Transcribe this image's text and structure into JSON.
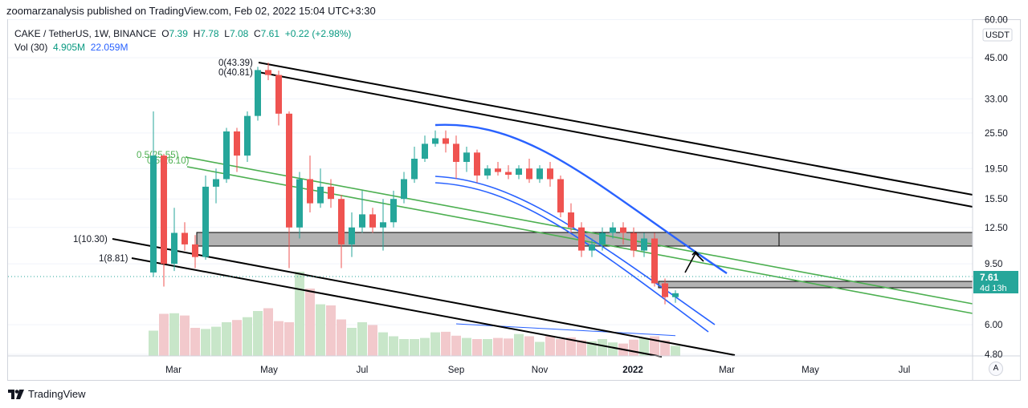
{
  "header": {
    "published": "zoomarzanalysis published on TradingView.com, Feb 02, 2022 15:04 UTC+3:30"
  },
  "legend": {
    "symbol": "CAKE / TetherUS, 1W, BINANCE",
    "open_label": "O",
    "open": "7.39",
    "high_label": "H",
    "high": "7.78",
    "low_label": "L",
    "low": "7.08",
    "close_label": "C",
    "close": "7.61",
    "change": "+0.22 (+2.98%)",
    "vol_label": "Vol (30)",
    "vol_value": "4.905M",
    "vol_ma": "22.059M"
  },
  "price_axis": {
    "unit": "USDT",
    "ticks": [
      "60.00",
      "45.00",
      "33.00",
      "25.50",
      "19.50",
      "15.50",
      "12.50",
      "9.50",
      "6.00",
      "4.80"
    ],
    "current_price": "7.61",
    "countdown": "4d 13h"
  },
  "time_axis": {
    "ticks": [
      "Mar",
      "May",
      "Jul",
      "Sep",
      "Nov",
      "2022",
      "Mar",
      "May",
      "Jul"
    ]
  },
  "annotations": {
    "fib_high_1": "0(43.39)",
    "fib_high_2": "0(40.81)",
    "fib_mid_1": "0.5(25.55)",
    "fib_mid_2": "0.5(26.10)",
    "fib_low_1": "1(10.30)",
    "fib_low_2": "1(8.81)"
  },
  "footer": {
    "brand": "TradingView",
    "auto_button": "A"
  },
  "colors": {
    "up": "#26a69a",
    "down": "#ef5350",
    "vol_up": "#c8e6c9",
    "vol_down": "#f2c9cc",
    "blue": "#2962ff",
    "green": "#4caf50",
    "black": "#000000",
    "box": "#b2b2b2"
  },
  "chart_data": {
    "type": "candlestick",
    "title": "CAKE / TetherUS, 1W, BINANCE",
    "y_scale": "log",
    "ylim": [
      4.0,
      62.0
    ],
    "x_ticks": [
      "Mar",
      "May",
      "Jul",
      "Sep",
      "Nov",
      "2022",
      "Mar",
      "May",
      "Jul"
    ],
    "candles": [
      [
        8.9,
        30.0,
        8.6,
        21.5
      ],
      [
        21.5,
        21.8,
        8.0,
        9.5
      ],
      [
        9.5,
        14.5,
        9.0,
        12.0
      ],
      [
        12.0,
        13.0,
        10.5,
        11.0
      ],
      [
        11.0,
        11.8,
        9.2,
        10.0
      ],
      [
        10.0,
        18.5,
        9.8,
        17.0
      ],
      [
        17.0,
        19.5,
        15.0,
        18.0
      ],
      [
        18.0,
        26.5,
        17.5,
        25.8
      ],
      [
        25.8,
        26.5,
        19.0,
        21.5
      ],
      [
        21.5,
        30.0,
        20.5,
        29.0
      ],
      [
        29.0,
        42.0,
        28.0,
        41.0
      ],
      [
        41.0,
        43.39,
        38.0,
        39.5
      ],
      [
        39.5,
        40.81,
        27.0,
        29.5
      ],
      [
        29.5,
        30.0,
        9.2,
        12.5
      ],
      [
        12.5,
        19.0,
        11.5,
        18.0
      ],
      [
        18.0,
        21.5,
        14.0,
        15.0
      ],
      [
        15.0,
        19.5,
        14.5,
        17.0
      ],
      [
        17.0,
        18.0,
        14.5,
        15.5
      ],
      [
        15.5,
        16.0,
        9.2,
        11.0
      ],
      [
        11.0,
        14.0,
        10.0,
        12.5
      ],
      [
        12.5,
        16.5,
        12.0,
        13.8
      ],
      [
        13.8,
        14.5,
        12.0,
        12.5
      ],
      [
        12.5,
        15.5,
        10.5,
        13.0
      ],
      [
        13.0,
        16.5,
        12.5,
        15.5
      ],
      [
        15.5,
        19.0,
        15.0,
        18.0
      ],
      [
        18.0,
        23.0,
        17.5,
        21.0
      ],
      [
        21.0,
        25.0,
        20.5,
        23.5
      ],
      [
        23.5,
        26.0,
        23.0,
        24.5
      ],
      [
        24.5,
        26.0,
        22.0,
        23.5
      ],
      [
        23.5,
        25.0,
        18.0,
        20.5
      ],
      [
        20.5,
        23.0,
        19.0,
        22.0
      ],
      [
        22.0,
        22.5,
        17.5,
        18.5
      ],
      [
        18.5,
        20.0,
        18.0,
        19.5
      ],
      [
        19.5,
        20.5,
        18.5,
        19.0
      ],
      [
        19.0,
        20.0,
        18.0,
        18.6
      ],
      [
        18.6,
        20.0,
        18.0,
        19.5
      ],
      [
        19.5,
        21.0,
        17.5,
        18.0
      ],
      [
        18.0,
        20.0,
        17.5,
        19.5
      ],
      [
        19.5,
        20.5,
        17.0,
        18.0
      ],
      [
        18.0,
        18.5,
        13.5,
        14.0
      ],
      [
        14.0,
        15.0,
        12.0,
        12.5
      ],
      [
        12.5,
        13.0,
        10.0,
        10.5
      ],
      [
        10.5,
        11.5,
        10.0,
        11.0
      ],
      [
        11.0,
        12.5,
        10.5,
        12.0
      ],
      [
        12.0,
        13.0,
        11.5,
        12.5
      ],
      [
        12.5,
        13.0,
        11.0,
        12.0
      ],
      [
        12.0,
        12.5,
        10.0,
        10.5
      ],
      [
        10.5,
        12.0,
        10.0,
        11.5
      ],
      [
        11.5,
        12.0,
        8.0,
        8.2
      ],
      [
        8.2,
        8.5,
        7.0,
        7.39
      ],
      [
        7.39,
        7.78,
        7.08,
        7.61
      ]
    ],
    "volume_relative": [
      0.45,
      0.75,
      0.76,
      0.72,
      0.5,
      0.48,
      0.52,
      0.6,
      0.64,
      0.69,
      0.8,
      0.85,
      0.62,
      0.6,
      1.5,
      1.2,
      0.92,
      0.9,
      0.65,
      0.5,
      0.6,
      0.55,
      0.42,
      0.35,
      0.3,
      0.3,
      0.32,
      0.42,
      0.43,
      0.36,
      0.32,
      0.3,
      0.3,
      0.32,
      0.31,
      0.39,
      0.35,
      0.25,
      0.35,
      0.3,
      0.33,
      0.28,
      0.26,
      0.3,
      0.24,
      0.22,
      0.29,
      0.32,
      0.35,
      0.28,
      0.18
    ],
    "support_box": {
      "low": 9.5,
      "high": 11.0
    },
    "current_box": {
      "low": 7.1,
      "high": 7.55
    }
  }
}
